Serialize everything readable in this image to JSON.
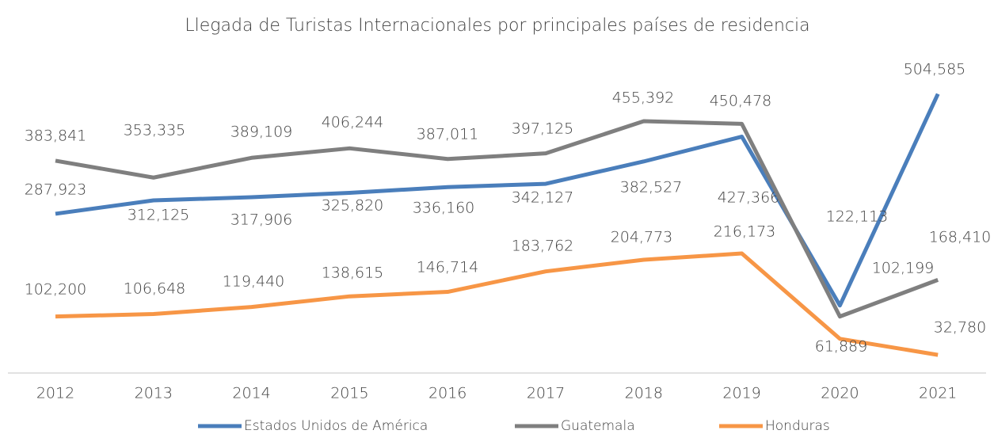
{
  "chart_data": {
    "type": "line",
    "title": "Llegada de Turistas Internacionales por principales países de residencia",
    "categories": [
      "2012",
      "2013",
      "2014",
      "2015",
      "2016",
      "2017",
      "2018",
      "2019",
      "2020",
      "2021"
    ],
    "series": [
      {
        "name": "Estados Unidos de América",
        "color": "#4a7ebb",
        "values": [
          287923,
          312125,
          317906,
          325820,
          336160,
          342127,
          382527,
          427366,
          122113,
          504585
        ],
        "value_labels": [
          "287,923",
          "312,125",
          "317,906",
          "325,820",
          "336,160",
          "342,127",
          "382,527",
          "427,366",
          "122,113",
          "504,585"
        ]
      },
      {
        "name": "Guatemala",
        "color": "#7f7f7f",
        "values": [
          383841,
          353335,
          389109,
          406244,
          387011,
          397125,
          455392,
          450478,
          102199,
          168410
        ],
        "value_labels": [
          "383,841",
          "353,335",
          "389,109",
          "406,244",
          "387,011",
          "397,125",
          "455,392",
          "450,478",
          "102,199",
          "168,410"
        ]
      },
      {
        "name": "Honduras",
        "color": "#f79646",
        "values": [
          102200,
          106648,
          119440,
          138615,
          146714,
          183762,
          204773,
          216173,
          61889,
          32780
        ],
        "value_labels": [
          "102,200",
          "106,648",
          "119,440",
          "138,615",
          "146,714",
          "183,762",
          "204,773",
          "216,173",
          "61,889",
          "32,780"
        ]
      }
    ],
    "ylim": [
      0,
      600000
    ],
    "grid": false,
    "legend": "bottom"
  }
}
